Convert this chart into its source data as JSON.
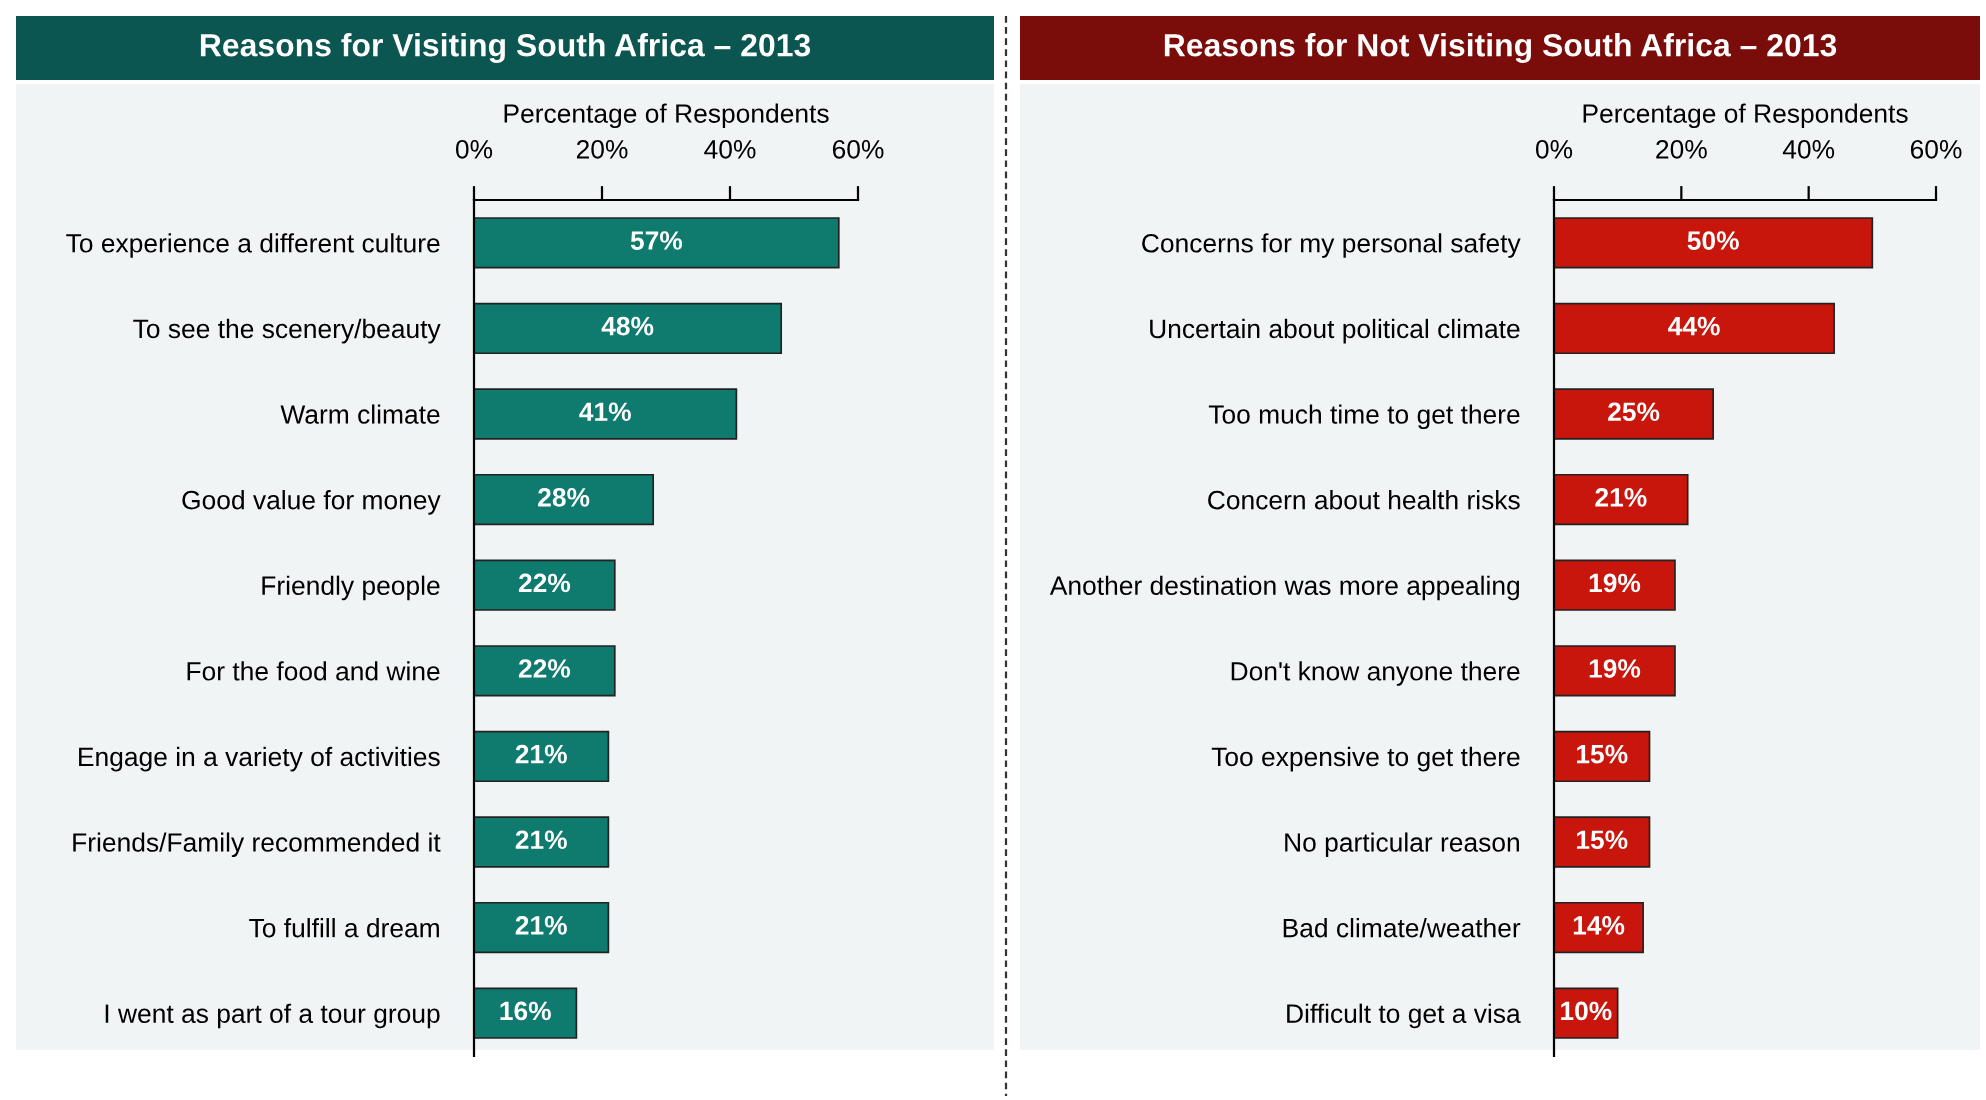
{
  "chart_data": [
    {
      "type": "bar",
      "orientation": "horizontal",
      "title": "Reasons for Visiting South Africa – 2013",
      "xlabel": "Percentage of Respondents",
      "categories": [
        "To experience a different culture",
        "To see the scenery/beauty",
        "Warm climate",
        "Good value for money",
        "Friendly people",
        "For the food and wine",
        "Engage in a variety of activities",
        "Friends/Family recommended it",
        "To fulfill a dream",
        "I went as part of a tour group"
      ],
      "values": [
        57,
        48,
        41,
        28,
        22,
        22,
        21,
        21,
        21,
        16
      ],
      "value_labels": [
        "57%",
        "48%",
        "41%",
        "28%",
        "22%",
        "22%",
        "21%",
        "21%",
        "21%",
        "16%"
      ],
      "color": "#0f7a6e",
      "xlim": [
        0,
        60
      ],
      "xticks": [
        {
          "value": 0,
          "label": "0%"
        },
        {
          "value": 20,
          "label": "20%"
        },
        {
          "value": 40,
          "label": "40%"
        },
        {
          "value": 60,
          "label": "60%"
        }
      ],
      "grid": false,
      "legend": false
    },
    {
      "type": "bar",
      "orientation": "horizontal",
      "title": "Reasons for Not Visiting South Africa – 2013",
      "xlabel": "Percentage of Respondents",
      "categories": [
        "Concerns for my personal safety",
        "Uncertain about political climate",
        "Too much time to get there",
        "Concern about health risks",
        "Another destination was more appealing",
        "Don't know anyone there",
        "Too expensive to get there",
        "No particular reason",
        "Bad climate/weather",
        "Difficult to get a visa"
      ],
      "values": [
        50,
        44,
        25,
        21,
        19,
        19,
        15,
        15,
        14,
        10
      ],
      "value_labels": [
        "50%",
        "44%",
        "25%",
        "21%",
        "19%",
        "19%",
        "15%",
        "15%",
        "14%",
        "10%"
      ],
      "color": "#c8160c",
      "xlim": [
        0,
        60
      ],
      "xticks": [
        {
          "value": 0,
          "label": "0%"
        },
        {
          "value": 20,
          "label": "20%"
        },
        {
          "value": 40,
          "label": "40%"
        },
        {
          "value": 60,
          "label": "60%"
        }
      ],
      "grid": false,
      "legend": false
    }
  ]
}
